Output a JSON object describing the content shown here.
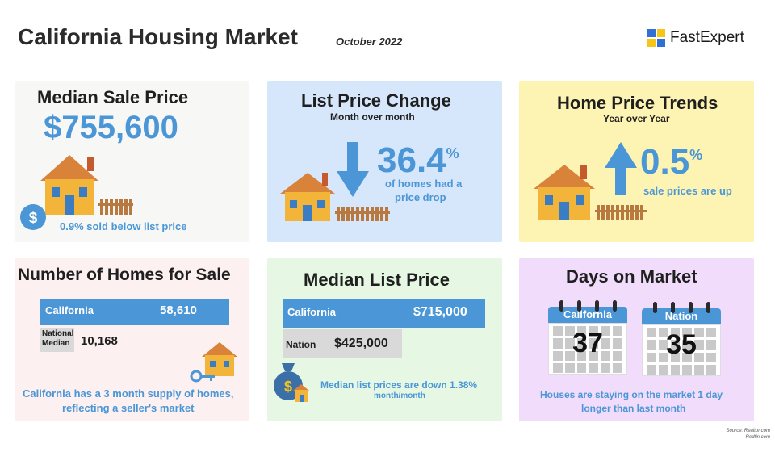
{
  "header": {
    "title": "California Housing Market",
    "subtitle": "October 2022",
    "brand": "FastExpert"
  },
  "colors": {
    "accent_blue": "#4a96d6",
    "grey_bar": "#d9d9d9",
    "logo_blue": "#2f6fd6",
    "logo_yellow": "#f5c518"
  },
  "median_sale": {
    "title": "Median Sale Price",
    "value": "$755,600",
    "note": "0.9% sold below list price",
    "icon": "dollar-icon"
  },
  "list_change": {
    "title": "List Price Change",
    "subtitle": "Month over month",
    "value": "36.4",
    "percent": "%",
    "note_line1": "of homes had a",
    "note_line2": "price drop",
    "icon": "down-arrow-icon"
  },
  "price_trends": {
    "title": "Home Price Trends",
    "subtitle": "Year over Year",
    "value": "0.5",
    "percent": "%",
    "note": "sale prices are up",
    "icon": "up-arrow-icon"
  },
  "homes_for_sale": {
    "title": "Number of Homes for Sale",
    "ca_label": "California",
    "ca_value": "58,610",
    "nat_label_1": "National",
    "nat_label_2": "Median",
    "nat_value": "10,168",
    "note_line1": "California has a 3 month supply of homes,",
    "note_line2": "reflecting a seller's market",
    "icon": "key-icon"
  },
  "median_list": {
    "title": "Median List Price",
    "ca_label": "California",
    "ca_value": "$715,000",
    "nat_label": "Nation",
    "nat_value": "$425,000",
    "note_line1": "Median list prices are down 1.38%",
    "note_line2": "month/month",
    "icon": "money-bag-icon"
  },
  "days_on_market": {
    "title": "Days on Market",
    "ca_label": "California",
    "ca_value": "37",
    "nat_label": "Nation",
    "nat_value": "35",
    "note_line1": "Houses are staying on the market 1 day",
    "note_line2": "longer than last month",
    "icon": "calendar-icon"
  },
  "source": {
    "line1": "Source: Realtor.com",
    "line2": "Redfin.com"
  }
}
